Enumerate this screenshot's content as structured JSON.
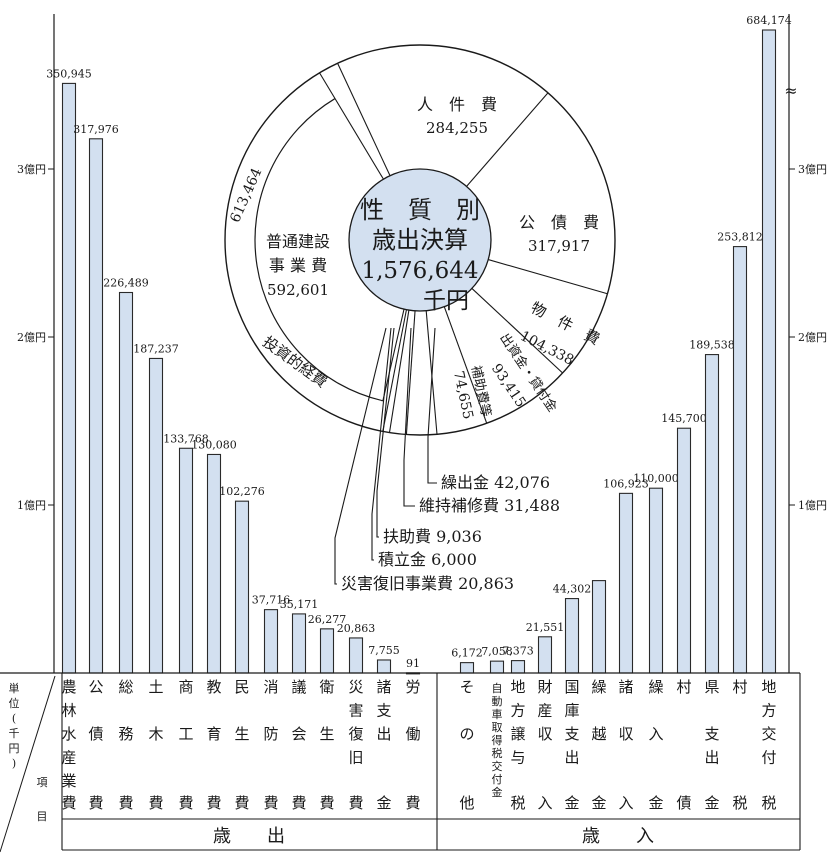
{
  "chart_data": {
    "type": "bar",
    "unit_label": [
      "単",
      "位",
      "(",
      "千",
      "円",
      ")"
    ],
    "item_label": [
      "項",
      "目"
    ],
    "y_ticks": [
      {
        "value": 100000,
        "label": "1億円"
      },
      {
        "value": 200000,
        "label": "2億円"
      },
      {
        "value": 300000,
        "label": "3億円"
      }
    ],
    "scale_break": "≈",
    "expenditure": {
      "group_label": "歳　　出",
      "categories": [
        {
          "label": [
            "農",
            "林",
            "水",
            "産",
            "業",
            "費"
          ],
          "value": 350945,
          "value_label": "350,945"
        },
        {
          "label": [
            "公",
            "",
            "債",
            "",
            "",
            "費"
          ],
          "value": 317976,
          "value_label": "317,976"
        },
        {
          "label": [
            "総",
            "",
            "務",
            "",
            "",
            "費"
          ],
          "value": 226489,
          "value_label": "226,489"
        },
        {
          "label": [
            "土",
            "",
            "木",
            "",
            "",
            "費"
          ],
          "value": 187237,
          "value_label": "187,237"
        },
        {
          "label": [
            "商",
            "",
            "工",
            "",
            "",
            "費"
          ],
          "value": 133768,
          "value_label": "133,768"
        },
        {
          "label": [
            "教",
            "",
            "育",
            "",
            "",
            "費"
          ],
          "value": 130080,
          "value_label": "130,080"
        },
        {
          "label": [
            "民",
            "",
            "生",
            "",
            "",
            "費"
          ],
          "value": 102276,
          "value_label": "102,276"
        },
        {
          "label": [
            "消",
            "",
            "防",
            "",
            "",
            "費"
          ],
          "value": 37716,
          "value_label": "37,716"
        },
        {
          "label": [
            "議",
            "",
            "会",
            "",
            "",
            "費"
          ],
          "value": 35171,
          "value_label": "35,171"
        },
        {
          "label": [
            "衛",
            "",
            "生",
            "",
            "",
            "費"
          ],
          "value": 26277,
          "value_label": "26,277"
        },
        {
          "label": [
            "災",
            "害",
            "復",
            "旧",
            "",
            "費"
          ],
          "value": 20863,
          "value_label": "20,863"
        },
        {
          "label": [
            "諸",
            "支",
            "出",
            "",
            "",
            "金"
          ],
          "value": 7755,
          "value_label": "7,755"
        },
        {
          "label": [
            "労",
            "",
            "働",
            "",
            "",
            "費"
          ],
          "value": 91,
          "value_label": "91"
        }
      ]
    },
    "revenue": {
      "group_label": "歳　　入",
      "categories": [
        {
          "label": [
            "そ",
            "",
            "の",
            "",
            "",
            "他"
          ],
          "value": 6172,
          "value_label": "6,172"
        },
        {
          "label": [
            "自動車取得税交付金"
          ],
          "value": 7058,
          "value_label": "7,058",
          "vertical": true
        },
        {
          "label": [
            "地",
            "方",
            "譲",
            "与",
            "",
            "税"
          ],
          "value": 7373,
          "value_label": "7,373"
        },
        {
          "label": [
            "財",
            "産",
            "収",
            "",
            "",
            "入"
          ],
          "value": 21551,
          "value_label": "21,551"
        },
        {
          "label": [
            "国",
            "庫",
            "支",
            "出",
            "",
            "金"
          ],
          "value": 44302,
          "value_label": "44,302"
        },
        {
          "label": [
            "繰",
            "",
            "越",
            "",
            "",
            "金"
          ],
          "value": 55000,
          "value_label": ""
        },
        {
          "label": [
            "諸",
            "",
            "収",
            "",
            "",
            "入"
          ],
          "value": 106923,
          "value_label": "106,923"
        },
        {
          "label": [
            "繰",
            "",
            "入",
            "",
            "",
            "金"
          ],
          "value": 110000,
          "value_label": "110,000"
        },
        {
          "label": [
            "村",
            "",
            "",
            "",
            "",
            "債"
          ],
          "value": 145700,
          "value_label": "145,700"
        },
        {
          "label": [
            "県",
            "",
            "支",
            "出",
            "",
            "金"
          ],
          "value": 189538,
          "value_label": "189,538"
        },
        {
          "label": [
            "村",
            "",
            "",
            "",
            "",
            "税"
          ],
          "value": 253812,
          "value_label": "253,812"
        },
        {
          "label": [
            "地",
            "方",
            "交",
            "付",
            "",
            "税"
          ],
          "value": 684174,
          "value_label": "684,174",
          "broken": true
        }
      ]
    },
    "donut": {
      "title_lines": [
        "性　質　別",
        "歳出決算",
        "1,576,644",
        "千円"
      ],
      "total": 1576644,
      "segments": [
        {
          "label": "人件費",
          "value_label": "284,255",
          "value": 284255
        },
        {
          "label": "公債費",
          "value_label": "317,917",
          "value": 317917
        },
        {
          "label": "物件費",
          "value_label": "104,338",
          "value": 104338
        },
        {
          "label": "出資金・貸付金",
          "value_label": "93,415",
          "value": 93415
        },
        {
          "label": "補助費等",
          "value_label": "74,655",
          "value": 74655
        },
        {
          "label": "繰出金",
          "value_label": "42,076",
          "value": 42076
        },
        {
          "label": "維持補修費",
          "value_label": "31,488",
          "value": 31488
        },
        {
          "label": "扶助費",
          "value_label": "9,036",
          "value": 9036
        },
        {
          "label": "積立金",
          "value_label": "6,000",
          "value": 6000
        },
        {
          "label": "災害復旧事業費",
          "value_label": "20,863",
          "value": 20863
        },
        {
          "label": "投資的経費",
          "value_label": "613,464",
          "value": 613464
        },
        {
          "label": "普通建設事業費",
          "value_label": "592,601",
          "value": 592601
        }
      ],
      "callouts": [
        "繰出金 42,076",
        "維持補修費 31,488",
        "扶助費 9,036",
        "積立金 6,000",
        "災害復旧事業費 20,863"
      ],
      "inner_labels": {
        "jinken": [
          "人　件　費",
          "284,255"
        ],
        "kosai": [
          "公　債　費",
          "317,917"
        ],
        "futsu": [
          "普通建設",
          "事 業 費",
          "592,601"
        ],
        "toushi_value": "613,464",
        "toushi_label": "投資的経費",
        "bukken": [
          "物　件　費",
          "104,338"
        ],
        "shusshi": [
          "出資金・貸付金",
          "93,415"
        ],
        "hojo": [
          "補助費等",
          "74,655"
        ]
      }
    },
    "colors": {
      "bar_fill": "#d3e0f0",
      "bar_stroke": "#2a2a2a",
      "center_fill": "#d3e0f0",
      "ink": "#1a1a1a"
    }
  }
}
